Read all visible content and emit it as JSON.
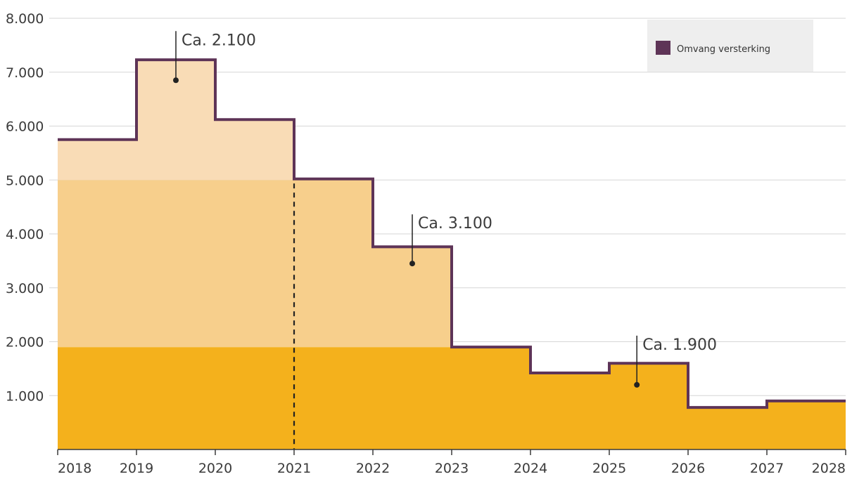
{
  "chart_data": {
    "type": "step-area",
    "title": "",
    "xlabel": "",
    "ylabel": "",
    "x_ticks": [
      "2018",
      "2019",
      "2020",
      "2021",
      "2022",
      "2023",
      "2024",
      "2025",
      "2026",
      "2027",
      "2028"
    ],
    "y_ticks": [
      "1.000",
      "2.000",
      "3.000",
      "4.000",
      "5.000",
      "6.000",
      "7.000",
      "8.000"
    ],
    "ylim": [
      0,
      8000
    ],
    "xlim": [
      2018,
      2028
    ],
    "grid": "horizontal",
    "legend": {
      "position": "top-right",
      "entries": [
        {
          "name": "Omvang versterking",
          "color": "#5e3457"
        }
      ]
    },
    "series": [
      {
        "name": "Omvang versterking",
        "steps": [
          {
            "from": 2018,
            "to": 2019,
            "value": 5750
          },
          {
            "from": 2019,
            "to": 2020,
            "value": 7230
          },
          {
            "from": 2020,
            "to": 2021,
            "value": 6120
          },
          {
            "from": 2021,
            "to": 2022,
            "value": 5020
          },
          {
            "from": 2022,
            "to": 2023,
            "value": 3760
          },
          {
            "from": 2023,
            "to": 2024,
            "value": 1900
          },
          {
            "from": 2024,
            "to": 2025,
            "value": 1420
          },
          {
            "from": 2025,
            "to": 2026,
            "value": 1600
          },
          {
            "from": 2026,
            "to": 2027,
            "value": 780
          },
          {
            "from": 2027,
            "to": 2028,
            "value": 900
          }
        ]
      }
    ],
    "bands": [
      {
        "from": 0,
        "to": 1900,
        "color": "#f4b11c"
      },
      {
        "from": 1900,
        "to": 5000,
        "color": "#f7cf8c"
      },
      {
        "from": 5000,
        "to": 8000,
        "color": "#f9dcb6"
      }
    ],
    "vertical_marker": {
      "x": 2021,
      "style": "dashed"
    },
    "annotations": [
      {
        "text": "Ca. 2.100",
        "point": {
          "x": 2019.5,
          "y": 6850
        }
      },
      {
        "text": "Ca. 3.100",
        "point": {
          "x": 2022.5,
          "y": 3450
        }
      },
      {
        "text": "Ca. 1.900",
        "point": {
          "x": 2025.35,
          "y": 1200
        }
      }
    ],
    "colors": {
      "line": "#5e3457",
      "grid": "#d6d6d6",
      "axis": "#3b3b3b",
      "legend_bg": "#eeeeee"
    }
  }
}
